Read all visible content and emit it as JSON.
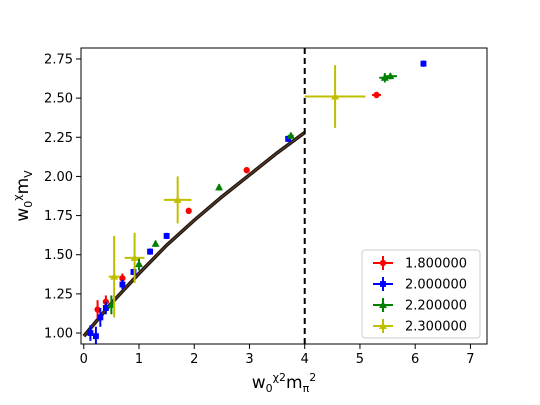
{
  "chart_data": {
    "type": "scatter",
    "title": "",
    "xlabel": "w0^χ2 mπ^2",
    "ylabel": "w0^χ mV",
    "xlim": [
      -0.05,
      7.3
    ],
    "ylim": [
      0.93,
      2.82
    ],
    "xticks": [
      "0",
      "1",
      "2",
      "3",
      "4",
      "5",
      "6",
      "7"
    ],
    "yticks": [
      "1.00",
      "1.25",
      "1.50",
      "1.75",
      "2.00",
      "2.25",
      "2.50",
      "2.75"
    ],
    "grid": false,
    "legend_position": "lower-right",
    "vline_x": 4.0,
    "fit_curve": {
      "x": [
        0,
        0.5,
        1.0,
        1.5,
        2.0,
        2.5,
        3.0,
        3.5,
        4.0
      ],
      "y": [
        0.98,
        1.19,
        1.38,
        1.56,
        1.72,
        1.87,
        2.01,
        2.15,
        2.28
      ]
    },
    "series": [
      {
        "name": "1.800000",
        "color": "#ff0000",
        "marker": "circle",
        "points": [
          {
            "x": 0.25,
            "y": 1.15,
            "xerr": 0.03,
            "yerr": 0.06
          },
          {
            "x": 0.4,
            "y": 1.2,
            "xerr": 0.03,
            "yerr": 0.04
          },
          {
            "x": 0.7,
            "y": 1.35,
            "xerr": 0.03,
            "yerr": 0.03
          },
          {
            "x": 1.9,
            "y": 1.78,
            "xerr": 0.03,
            "yerr": 0.02
          },
          {
            "x": 2.95,
            "y": 2.04,
            "xerr": 0.03,
            "yerr": 0.02
          },
          {
            "x": 5.3,
            "y": 2.52,
            "xerr": 0.08,
            "yerr": 0.02
          }
        ]
      },
      {
        "name": "2.000000",
        "color": "#0000ff",
        "marker": "square",
        "points": [
          {
            "x": 0.12,
            "y": 1.0,
            "xerr": 0.05,
            "yerr": 0.05
          },
          {
            "x": 0.22,
            "y": 0.98,
            "xerr": 0.05,
            "yerr": 0.06
          },
          {
            "x": 0.3,
            "y": 1.1,
            "xerr": 0.04,
            "yerr": 0.06
          },
          {
            "x": 0.4,
            "y": 1.16,
            "xerr": 0.04,
            "yerr": 0.04
          },
          {
            "x": 0.7,
            "y": 1.31,
            "xerr": 0.03,
            "yerr": 0.03
          },
          {
            "x": 0.9,
            "y": 1.39,
            "xerr": 0.03,
            "yerr": 0.02
          },
          {
            "x": 1.2,
            "y": 1.52,
            "xerr": 0.03,
            "yerr": 0.02
          },
          {
            "x": 1.5,
            "y": 1.62,
            "xerr": 0.03,
            "yerr": 0.02
          },
          {
            "x": 3.7,
            "y": 2.24,
            "xerr": 0.04,
            "yerr": 0.02
          },
          {
            "x": 6.15,
            "y": 2.72,
            "xerr": 0.04,
            "yerr": 0.02
          }
        ]
      },
      {
        "name": "2.200000",
        "color": "#008000",
        "marker": "triangle",
        "points": [
          {
            "x": 0.5,
            "y": 1.18,
            "xerr": 0.04,
            "yerr": 0.06
          },
          {
            "x": 1.0,
            "y": 1.44,
            "xerr": 0.04,
            "yerr": 0.04
          },
          {
            "x": 1.3,
            "y": 1.57,
            "xerr": 0.03,
            "yerr": 0.02
          },
          {
            "x": 2.45,
            "y": 1.93,
            "xerr": 0.04,
            "yerr": 0.02
          },
          {
            "x": 3.75,
            "y": 2.26,
            "xerr": 0.05,
            "yerr": 0.02
          },
          {
            "x": 5.45,
            "y": 2.63,
            "xerr": 0.1,
            "yerr": 0.03
          },
          {
            "x": 5.55,
            "y": 2.64,
            "xerr": 0.12,
            "yerr": 0.02
          }
        ]
      },
      {
        "name": "2.300000",
        "color": "#bfbf00",
        "marker": "triangle",
        "points": [
          {
            "x": 0.55,
            "y": 1.36,
            "xerr": 0.1,
            "yerr": 0.26
          },
          {
            "x": 0.92,
            "y": 1.48,
            "xerr": 0.18,
            "yerr": 0.16
          },
          {
            "x": 1.7,
            "y": 1.85,
            "xerr": 0.25,
            "yerr": 0.15
          },
          {
            "x": 4.55,
            "y": 2.51,
            "xerr": 0.55,
            "yerr": 0.2
          }
        ]
      }
    ]
  }
}
